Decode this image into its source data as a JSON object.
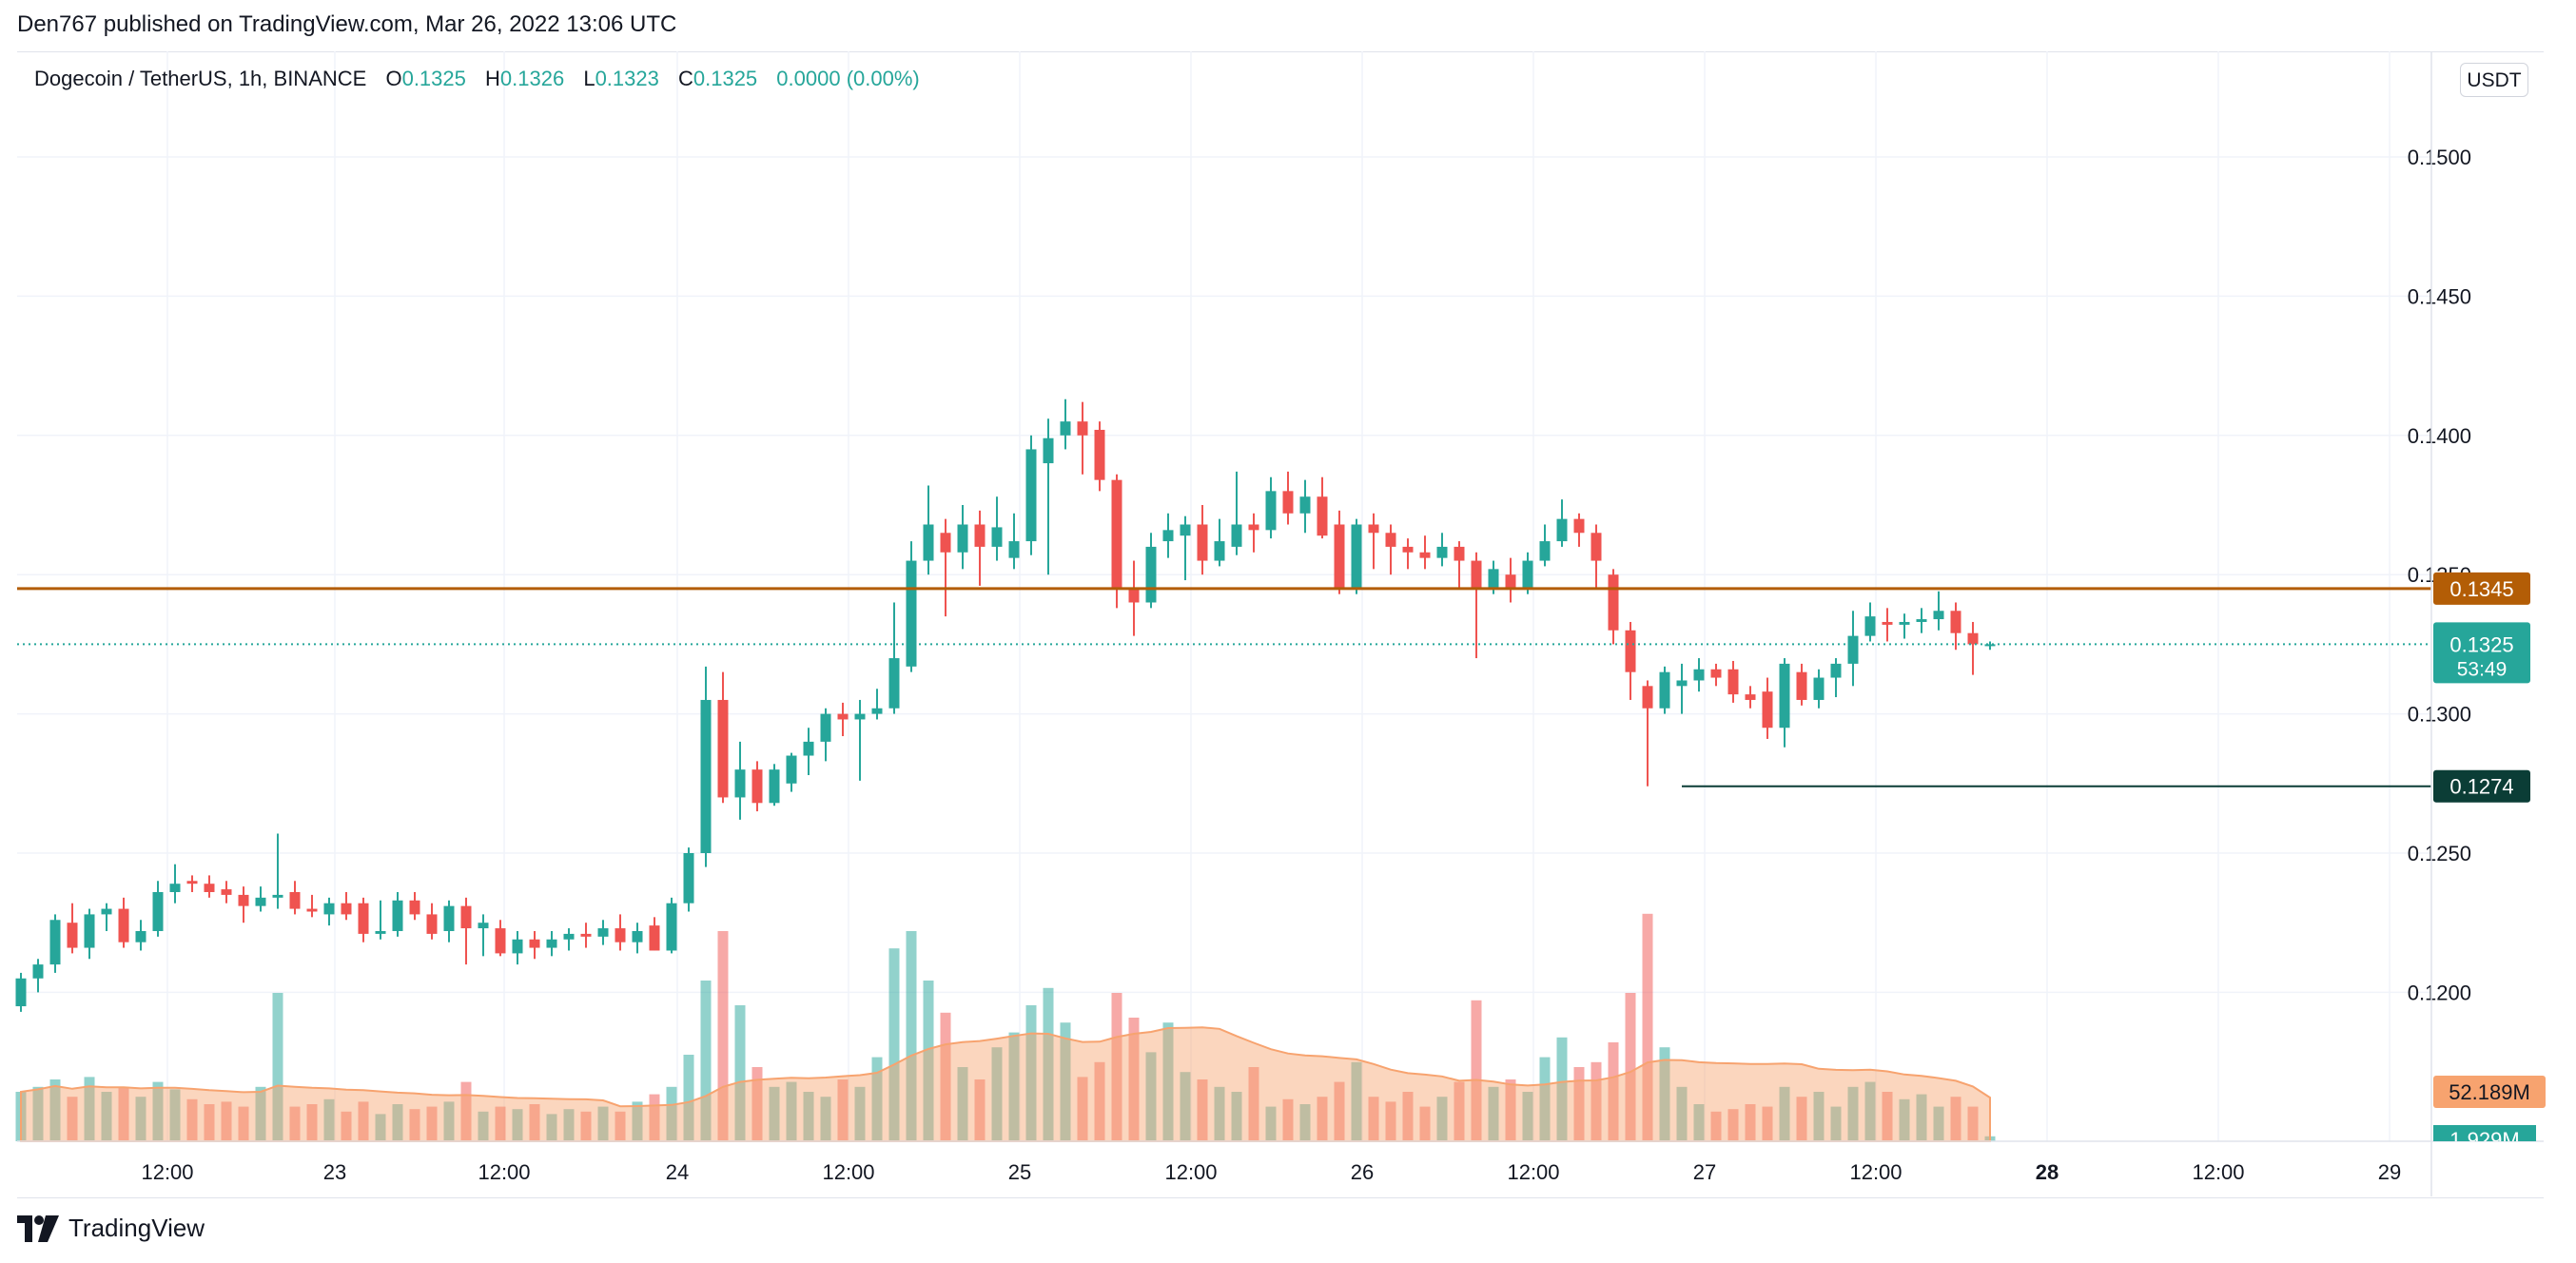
{
  "header": {
    "published_text": "Den767 published on TradingView.com, Mar 26, 2022 13:06 UTC"
  },
  "legend": {
    "symbol": "Dogecoin / TetherUS, 1h, BINANCE",
    "open_label": "O",
    "open": "0.1325",
    "high_label": "H",
    "high": "0.1326",
    "low_label": "L",
    "low": "0.1323",
    "close_label": "C",
    "close": "0.1325",
    "change": "0.0000 (0.00%)"
  },
  "currency_button": "USDT",
  "brand": {
    "name": "TradingView",
    "logo_icon": "tradingview-logo-icon"
  },
  "colors": {
    "up": "#26a69a",
    "down": "#ef5350",
    "resistance": "#b35d06",
    "support": "#0b3d36",
    "current": "#26a69a",
    "volume_ma": "#f7a36f",
    "grid": "#f0f3fa"
  },
  "chart_data": {
    "type": "candlestick",
    "x_tick_labels": [
      "12:00",
      "23",
      "12:00",
      "24",
      "12:00",
      "25",
      "12:00",
      "26",
      "12:00",
      "27",
      "12:00",
      "28",
      "12:00",
      "29"
    ],
    "y_tick_labels": [
      "0.1500",
      "0.1450",
      "0.1400",
      "0.1350",
      "0.1300",
      "0.1250",
      "0.1200"
    ],
    "ylim": [
      0.1145,
      0.1525
    ],
    "grid": true,
    "resistance": {
      "value": 0.1345,
      "label": "0.1345"
    },
    "support": {
      "value": 0.1274,
      "label": "0.1274"
    },
    "current_price": {
      "value": 0.1325,
      "label": "0.1325",
      "countdown": "53:49"
    },
    "volume_ma_label": "52.189M",
    "volume_label": "1.929M",
    "candles": [
      [
        0.1195,
        0.1207,
        0.1193,
        0.1205,
        20
      ],
      [
        0.1205,
        0.1212,
        0.12,
        0.121,
        22
      ],
      [
        0.121,
        0.1228,
        0.1207,
        0.1226,
        25
      ],
      [
        0.1225,
        0.1232,
        0.1214,
        0.1216,
        18
      ],
      [
        0.1216,
        0.123,
        0.1212,
        0.1228,
        26
      ],
      [
        0.1228,
        0.1232,
        0.1222,
        0.123,
        20
      ],
      [
        0.123,
        0.1234,
        0.1216,
        0.1218,
        22
      ],
      [
        0.1218,
        0.1226,
        0.1215,
        0.1222,
        18
      ],
      [
        0.1222,
        0.124,
        0.122,
        0.1236,
        24
      ],
      [
        0.1236,
        0.1246,
        0.1232,
        0.1239,
        21
      ],
      [
        0.124,
        0.1242,
        0.1236,
        0.1239,
        17
      ],
      [
        0.1239,
        0.1242,
        0.1234,
        0.1236,
        15
      ],
      [
        0.1237,
        0.124,
        0.1232,
        0.1235,
        16
      ],
      [
        0.1235,
        0.1238,
        0.1225,
        0.1231,
        14
      ],
      [
        0.1231,
        0.1238,
        0.1229,
        0.1234,
        22
      ],
      [
        0.1234,
        0.1257,
        0.123,
        0.1235,
        60
      ],
      [
        0.1236,
        0.124,
        0.1228,
        0.123,
        14
      ],
      [
        0.123,
        0.1235,
        0.1227,
        0.1229,
        15
      ],
      [
        0.1228,
        0.1234,
        0.1224,
        0.1232,
        17
      ],
      [
        0.1232,
        0.1236,
        0.1226,
        0.1228,
        12
      ],
      [
        0.1232,
        0.1234,
        0.1218,
        0.1221,
        16
      ],
      [
        0.1221,
        0.1233,
        0.1219,
        0.1222,
        11
      ],
      [
        0.1222,
        0.1236,
        0.122,
        0.1233,
        15
      ],
      [
        0.1233,
        0.1236,
        0.1226,
        0.1228,
        13
      ],
      [
        0.1228,
        0.1232,
        0.1219,
        0.1221,
        14
      ],
      [
        0.1222,
        0.1233,
        0.1218,
        0.1231,
        16
      ],
      [
        0.1231,
        0.1234,
        0.121,
        0.1223,
        24
      ],
      [
        0.1223,
        0.1228,
        0.1213,
        0.1225,
        12
      ],
      [
        0.1223,
        0.1226,
        0.1213,
        0.1214,
        14
      ],
      [
        0.1214,
        0.1222,
        0.121,
        0.1219,
        13
      ],
      [
        0.1219,
        0.1222,
        0.1212,
        0.1216,
        15
      ],
      [
        0.1216,
        0.1222,
        0.1213,
        0.1219,
        11
      ],
      [
        0.1219,
        0.1223,
        0.1215,
        0.1221,
        13
      ],
      [
        0.1221,
        0.1225,
        0.1216,
        0.122,
        12
      ],
      [
        0.122,
        0.1226,
        0.1217,
        0.1223,
        14
      ],
      [
        0.1223,
        0.1228,
        0.1215,
        0.1218,
        12
      ],
      [
        0.1218,
        0.1225,
        0.1214,
        0.1222,
        16
      ],
      [
        0.1224,
        0.1227,
        0.1215,
        0.1215,
        19
      ],
      [
        0.1215,
        0.1234,
        0.1214,
        0.1232,
        22
      ],
      [
        0.1232,
        0.1252,
        0.1229,
        0.125,
        35
      ],
      [
        0.125,
        0.1317,
        0.1245,
        0.1305,
        65
      ],
      [
        0.1305,
        0.1315,
        0.1268,
        0.127,
        85
      ],
      [
        0.127,
        0.129,
        0.1262,
        0.128,
        55
      ],
      [
        0.128,
        0.1283,
        0.1265,
        0.1268,
        30
      ],
      [
        0.1268,
        0.1282,
        0.1267,
        0.128,
        22
      ],
      [
        0.1275,
        0.1286,
        0.1272,
        0.1285,
        24
      ],
      [
        0.1285,
        0.1295,
        0.1278,
        0.129,
        20
      ],
      [
        0.129,
        0.1302,
        0.1283,
        0.13,
        18
      ],
      [
        0.13,
        0.1304,
        0.1292,
        0.1298,
        25
      ],
      [
        0.1298,
        0.1305,
        0.1276,
        0.13,
        22
      ],
      [
        0.13,
        0.1309,
        0.1298,
        0.1302,
        34
      ],
      [
        0.1302,
        0.134,
        0.13,
        0.132,
        78
      ],
      [
        0.1317,
        0.1362,
        0.1315,
        0.1355,
        85
      ],
      [
        0.1355,
        0.1382,
        0.135,
        0.1368,
        65
      ],
      [
        0.1365,
        0.137,
        0.1335,
        0.1358,
        52
      ],
      [
        0.1358,
        0.1375,
        0.1352,
        0.1368,
        30
      ],
      [
        0.1368,
        0.1373,
        0.1346,
        0.136,
        25
      ],
      [
        0.136,
        0.1378,
        0.1355,
        0.1367,
        38
      ],
      [
        0.1356,
        0.1372,
        0.1352,
        0.1362,
        44
      ],
      [
        0.1362,
        0.14,
        0.1357,
        0.1395,
        55
      ],
      [
        0.139,
        0.1406,
        0.135,
        0.1399,
        62
      ],
      [
        0.14,
        0.1413,
        0.1395,
        0.1405,
        48
      ],
      [
        0.1405,
        0.1412,
        0.1386,
        0.14,
        26
      ],
      [
        0.1402,
        0.1405,
        0.138,
        0.1384,
        32
      ],
      [
        0.1384,
        0.1386,
        0.1338,
        0.1345,
        60
      ],
      [
        0.1345,
        0.1355,
        0.1328,
        0.134,
        50
      ],
      [
        0.134,
        0.1365,
        0.1338,
        0.136,
        36
      ],
      [
        0.1362,
        0.1372,
        0.1356,
        0.1366,
        48
      ],
      [
        0.1364,
        0.1371,
        0.1348,
        0.1368,
        28
      ],
      [
        0.1368,
        0.1375,
        0.135,
        0.1355,
        25
      ],
      [
        0.1355,
        0.137,
        0.1353,
        0.1362,
        22
      ],
      [
        0.136,
        0.1387,
        0.1357,
        0.1368,
        20
      ],
      [
        0.1368,
        0.1372,
        0.1358,
        0.1366,
        30
      ],
      [
        0.1366,
        0.1385,
        0.1363,
        0.138,
        14
      ],
      [
        0.138,
        0.1387,
        0.1368,
        0.1372,
        17
      ],
      [
        0.1372,
        0.1384,
        0.1365,
        0.1378,
        15
      ],
      [
        0.1378,
        0.1385,
        0.1363,
        0.1364,
        18
      ],
      [
        0.1368,
        0.1373,
        0.1343,
        0.1345,
        24
      ],
      [
        0.1345,
        0.137,
        0.1343,
        0.1368,
        32
      ],
      [
        0.1368,
        0.1372,
        0.1352,
        0.1365,
        18
      ],
      [
        0.1365,
        0.1368,
        0.135,
        0.136,
        16
      ],
      [
        0.136,
        0.1363,
        0.1352,
        0.1358,
        20
      ],
      [
        0.1358,
        0.1364,
        0.1352,
        0.1356,
        14
      ],
      [
        0.1356,
        0.1365,
        0.1353,
        0.136,
        18
      ],
      [
        0.136,
        0.1362,
        0.1345,
        0.1355,
        24
      ],
      [
        0.1355,
        0.1358,
        0.132,
        0.1345,
        57
      ],
      [
        0.1345,
        0.1355,
        0.1343,
        0.1352,
        22
      ],
      [
        0.135,
        0.1356,
        0.134,
        0.1345,
        25
      ],
      [
        0.1345,
        0.1358,
        0.1343,
        0.1355,
        20
      ],
      [
        0.1355,
        0.1368,
        0.1353,
        0.1362,
        34
      ],
      [
        0.1362,
        0.1377,
        0.136,
        0.137,
        42
      ],
      [
        0.137,
        0.1372,
        0.136,
        0.1365,
        30
      ],
      [
        0.1365,
        0.1368,
        0.1345,
        0.1355,
        32
      ],
      [
        0.135,
        0.1352,
        0.1325,
        0.133,
        40
      ],
      [
        0.133,
        0.1333,
        0.1305,
        0.1315,
        60
      ],
      [
        0.131,
        0.1312,
        0.1274,
        0.1302,
        92
      ],
      [
        0.1302,
        0.1317,
        0.13,
        0.1315,
        38
      ],
      [
        0.131,
        0.1318,
        0.13,
        0.1312,
        22
      ],
      [
        0.1312,
        0.132,
        0.1308,
        0.1316,
        15
      ],
      [
        0.1316,
        0.1318,
        0.131,
        0.1313,
        12
      ],
      [
        0.1316,
        0.1319,
        0.1304,
        0.1307,
        13
      ],
      [
        0.1307,
        0.131,
        0.1302,
        0.1305,
        15
      ],
      [
        0.1308,
        0.1313,
        0.1291,
        0.1295,
        14
      ],
      [
        0.1295,
        0.132,
        0.1288,
        0.1318,
        22
      ],
      [
        0.1315,
        0.1318,
        0.1303,
        0.1305,
        18
      ],
      [
        0.1305,
        0.1316,
        0.1302,
        0.1313,
        20
      ],
      [
        0.1313,
        0.132,
        0.1306,
        0.1318,
        14
      ],
      [
        0.1318,
        0.1337,
        0.131,
        0.1328,
        22
      ],
      [
        0.1328,
        0.134,
        0.1326,
        0.1335,
        24
      ],
      [
        0.1333,
        0.1338,
        0.1326,
        0.1332,
        20
      ],
      [
        0.1332,
        0.1336,
        0.1327,
        0.1333,
        17
      ],
      [
        0.1333,
        0.1338,
        0.1329,
        0.1334,
        19
      ],
      [
        0.1334,
        0.1344,
        0.133,
        0.1337,
        14
      ],
      [
        0.1337,
        0.134,
        0.1323,
        0.1329,
        18
      ],
      [
        0.1329,
        0.1333,
        0.1314,
        0.1325,
        14
      ],
      [
        0.1325,
        0.1326,
        0.1323,
        0.1325,
        2
      ]
    ]
  }
}
